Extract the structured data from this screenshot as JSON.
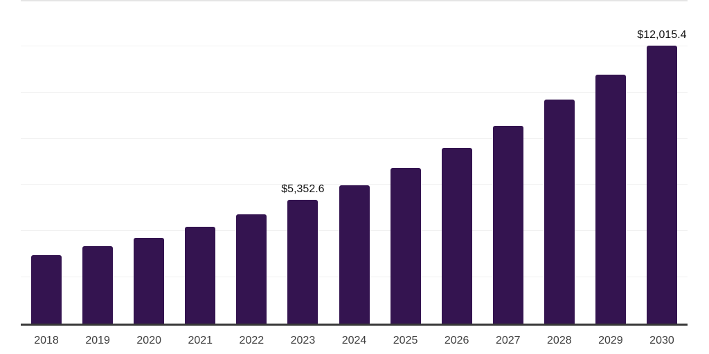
{
  "chart_data": {
    "type": "bar",
    "title": "",
    "xlabel": "",
    "ylabel": "",
    "categories": [
      "2018",
      "2019",
      "2020",
      "2021",
      "2022",
      "2023",
      "2024",
      "2025",
      "2026",
      "2027",
      "2028",
      "2029",
      "2030"
    ],
    "values": [
      2970,
      3340,
      3720,
      4190,
      4740,
      5352.6,
      5970,
      6740,
      7610,
      8550,
      9700,
      10780,
      12015.4
    ],
    "value_labels": [
      null,
      null,
      null,
      null,
      null,
      "$5,352.6",
      null,
      null,
      null,
      null,
      null,
      null,
      "$12,015.4"
    ],
    "ylim": [
      0,
      14000
    ],
    "gridline_step": 2000,
    "grid": true,
    "legend_position": "none",
    "bar_color": "#341450",
    "axis_line_color": "#383838",
    "gridline_color": "#f1f1f1",
    "top_border_color": "#e4e4e4",
    "tick_label_color": "#3e3e3e",
    "value_label_color": "#141414",
    "background_color": "#ffffff"
  }
}
